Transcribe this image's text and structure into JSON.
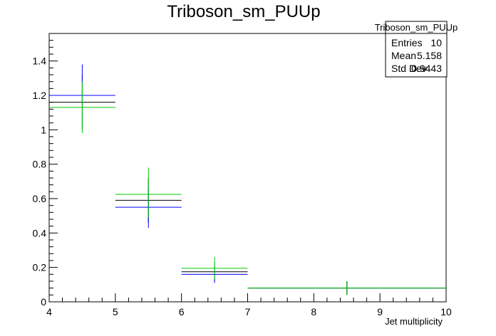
{
  "chart_data": {
    "type": "histogram",
    "title": "Triboson_sm_PUUp",
    "xlabel": "Jet multiplicity",
    "ylabel": "",
    "xlim": [
      4,
      10
    ],
    "ylim": [
      0,
      1.56
    ],
    "x_ticks": [
      "4",
      "5",
      "6",
      "7",
      "8",
      "9",
      "10"
    ],
    "y_ticks": [
      "0",
      "0.2",
      "0.4",
      "0.6",
      "0.8",
      "1",
      "1.2",
      "1.4"
    ],
    "grid": false,
    "legend": "none",
    "series": [
      {
        "color": "#000000",
        "bins": [
          {
            "x_low": 4,
            "x_high": 5,
            "x_center": 4.5,
            "value": 1.16,
            "err_low": 1.0,
            "err_high": 1.32
          },
          {
            "x_low": 5,
            "x_high": 6,
            "x_center": 5.5,
            "value": 0.59,
            "err_low": 0.46,
            "err_high": 0.72
          },
          {
            "x_low": 6,
            "x_high": 7,
            "x_center": 6.5,
            "value": 0.175,
            "err_low": 0.12,
            "err_high": 0.23
          },
          {
            "x_low": 7,
            "x_high": 10,
            "x_center": 8.5,
            "value": 0.08,
            "err_low": 0.04,
            "err_high": 0.12
          }
        ]
      },
      {
        "color": "#0000ff",
        "bins": [
          {
            "x_low": 4,
            "x_high": 5,
            "x_center": 4.5,
            "value": 1.2,
            "err_low": 1.02,
            "err_high": 1.38
          },
          {
            "x_low": 5,
            "x_high": 6,
            "x_center": 5.5,
            "value": 0.55,
            "err_low": 0.43,
            "err_high": 0.67
          },
          {
            "x_low": 6,
            "x_high": 7,
            "x_center": 6.5,
            "value": 0.16,
            "err_low": 0.11,
            "err_high": 0.21
          },
          {
            "x_low": 7,
            "x_high": 10,
            "x_center": 8.5,
            "value": 0.08,
            "err_low": 0.04,
            "err_high": 0.12
          }
        ]
      },
      {
        "color": "#00cc00",
        "bins": [
          {
            "x_low": 4,
            "x_high": 5,
            "x_center": 4.5,
            "value": 1.13,
            "err_low": 0.98,
            "err_high": 1.28
          },
          {
            "x_low": 5,
            "x_high": 6,
            "x_center": 5.5,
            "value": 0.625,
            "err_low": 0.49,
            "err_high": 0.78
          },
          {
            "x_low": 6,
            "x_high": 7,
            "x_center": 6.5,
            "value": 0.195,
            "err_low": 0.13,
            "err_high": 0.26
          },
          {
            "x_low": 7,
            "x_high": 10,
            "x_center": 8.5,
            "value": 0.08,
            "err_low": 0.04,
            "err_high": 0.12
          }
        ]
      }
    ]
  },
  "stats_box": {
    "title": "Triboson_sm_PUUp",
    "rows": [
      {
        "label": "Entries",
        "value": "10"
      },
      {
        "label": "Mean",
        "value": "5.158"
      },
      {
        "label": "Std Dev",
        "value": "0.9443"
      }
    ]
  }
}
